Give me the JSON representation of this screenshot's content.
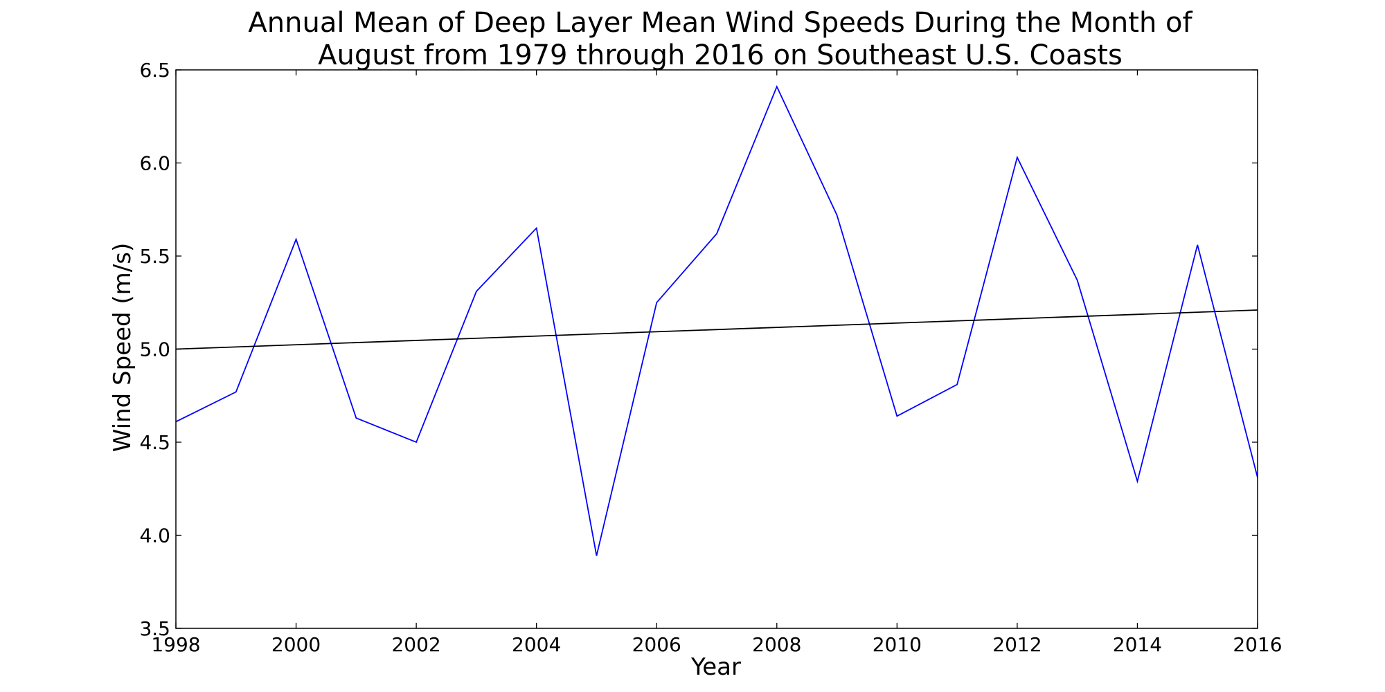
{
  "chart_data": {
    "type": "line",
    "title_lines": [
      "Annual Mean of Deep Layer Mean Wind Speeds During the Month of",
      "August from 1979 through 2016 on Southeast U.S. Coasts"
    ],
    "xlabel": "Year",
    "ylabel": "Wind Speed (m/s)",
    "xlim": [
      1998,
      2016
    ],
    "ylim": [
      3.5,
      6.5
    ],
    "x_ticks": [
      1998,
      2000,
      2002,
      2004,
      2006,
      2008,
      2010,
      2012,
      2014,
      2016
    ],
    "y_ticks": [
      3.5,
      4.0,
      4.5,
      5.0,
      5.5,
      6.0,
      6.5
    ],
    "y_tick_labels": [
      "3.5",
      "4.0",
      "4.5",
      "5.0",
      "5.5",
      "6.0",
      "6.5"
    ],
    "grid": false,
    "series": [
      {
        "color": "#0000ff",
        "x": [
          1998,
          1999,
          2000,
          2001,
          2002,
          2003,
          2004,
          2005,
          2006,
          2007,
          2008,
          2009,
          2010,
          2011,
          2012,
          2013,
          2014,
          2015,
          2016
        ],
        "values": [
          4.61,
          4.77,
          5.59,
          4.63,
          4.5,
          5.31,
          5.65,
          3.89,
          5.25,
          5.62,
          6.41,
          5.72,
          4.64,
          4.81,
          6.03,
          5.37,
          4.29,
          5.56,
          4.31
        ]
      },
      {
        "color": "#000000",
        "x": [
          1998,
          2016
        ],
        "values": [
          5.0,
          5.21
        ]
      }
    ]
  }
}
